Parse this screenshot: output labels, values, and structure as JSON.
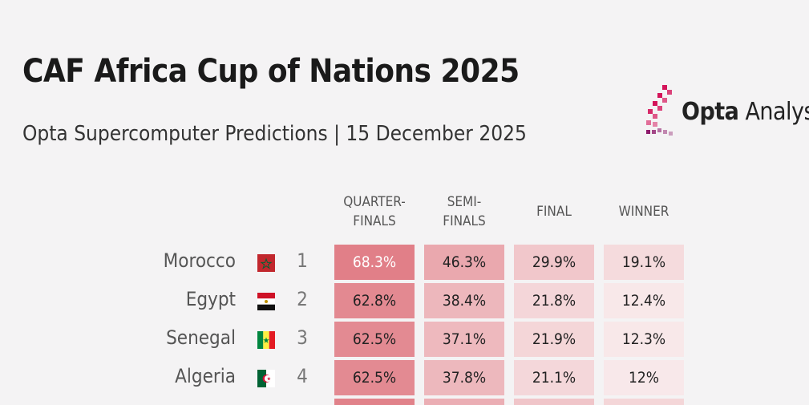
{
  "header": {
    "title": "CAF Africa Cup of Nations 2025",
    "subtitle": "Opta Supercomputer Predictions | 15 December 2025"
  },
  "brand": {
    "logo_bold": "Opta",
    "logo_light": "Analyst",
    "accent": "#d4145a"
  },
  "chart_data": {
    "type": "table",
    "columns": [
      "QUARTER-FINALS",
      "SEMI-FINALS",
      "FINAL",
      "WINNER"
    ],
    "column_headers": [
      [
        "QUARTER-",
        "FINALS"
      ],
      [
        "SEMI-",
        "FINALS"
      ],
      [
        "FINAL"
      ],
      [
        "WINNER"
      ]
    ],
    "rows": [
      {
        "team": "Morocco",
        "flag": "morocco-flag-icon",
        "rank": "1",
        "values": [
          68.3,
          46.3,
          29.9,
          19.1
        ],
        "labels": [
          "68.3%",
          "46.3%",
          "29.9%",
          "19.1%"
        ]
      },
      {
        "team": "Egypt",
        "flag": "egypt-flag-icon",
        "rank": "2",
        "values": [
          62.8,
          38.4,
          21.8,
          12.4
        ],
        "labels": [
          "62.8%",
          "38.4%",
          "21.8%",
          "12.4%"
        ]
      },
      {
        "team": "Senegal",
        "flag": "senegal-flag-icon",
        "rank": "3",
        "values": [
          62.5,
          37.1,
          21.9,
          12.3
        ],
        "labels": [
          "62.5%",
          "37.1%",
          "21.9%",
          "12.3%"
        ]
      },
      {
        "team": "Algeria",
        "flag": "algeria-flag-icon",
        "rank": "4",
        "values": [
          62.5,
          37.8,
          21.1,
          12
        ],
        "labels": [
          "62.5%",
          "37.8%",
          "21.1%",
          "12%"
        ]
      }
    ],
    "color_scale": {
      "low": "#f9eced",
      "high": "#e07c85"
    }
  }
}
